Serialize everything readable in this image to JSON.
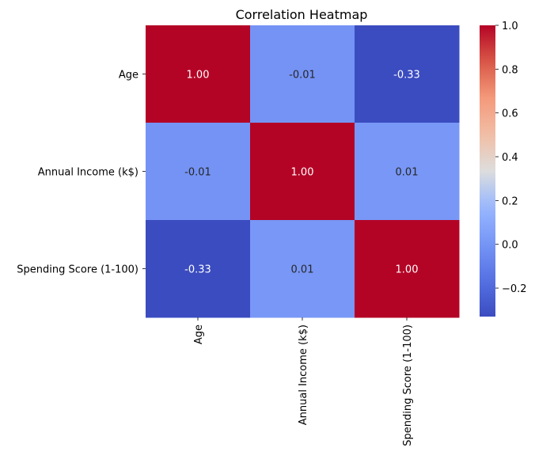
{
  "chart_data": {
    "type": "heatmap",
    "title": "Correlation Heatmap",
    "row_labels": [
      "Age",
      "Annual Income (k$)",
      "Spending Score (1-100)"
    ],
    "column_labels": [
      "Age",
      "Annual Income (k$)",
      "Spending Score (1-100)"
    ],
    "values": [
      [
        1.0,
        -0.01,
        -0.33
      ],
      [
        -0.01,
        1.0,
        0.01
      ],
      [
        -0.33,
        0.01,
        1.0
      ]
    ],
    "cell_labels": [
      [
        "1.00",
        "-0.01",
        "-0.33"
      ],
      [
        "-0.01",
        "1.00",
        "0.01"
      ],
      [
        "-0.33",
        "0.01",
        "1.00"
      ]
    ],
    "colormap": "coolwarm",
    "vmin": -0.33,
    "vmax": 1.0,
    "colorbar": {
      "ticks": [
        -0.2,
        0.0,
        0.2,
        0.4,
        0.6,
        0.8,
        1.0
      ],
      "tick_labels": [
        "−0.2",
        "0.0",
        "0.2",
        "0.4",
        "0.6",
        "0.8",
        "1.0"
      ]
    },
    "grid": false,
    "legend_position": "right"
  }
}
